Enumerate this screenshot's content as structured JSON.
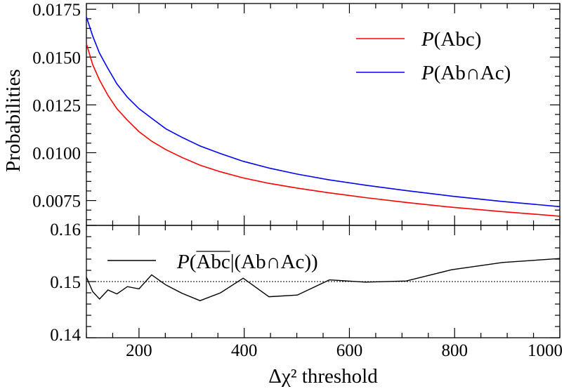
{
  "chart_data": [
    {
      "type": "line",
      "panel": "top",
      "ylabel": "Probabilities",
      "xlim": [
        100,
        1000
      ],
      "ylim": [
        0.0062,
        0.0178
      ],
      "yticks_major": [
        "0.0075",
        "0.0100",
        "0.0125",
        "0.0150",
        "0.0175"
      ],
      "legend_position": "top-right",
      "series": [
        {
          "name": "P(Abc)",
          "color": "#ff0000",
          "x": [
            100,
            112,
            125,
            141,
            158,
            178,
            200,
            224,
            251,
            282,
            316,
            355,
            398,
            447,
            501,
            562,
            631,
            708,
            794,
            891,
            1000
          ],
          "y": [
            0.0157,
            0.0146,
            0.0138,
            0.013,
            0.0123,
            0.0117,
            0.0111,
            0.0106,
            0.01016,
            0.00975,
            0.00935,
            0.009,
            0.00868,
            0.0084,
            0.00815,
            0.0079,
            0.00765,
            0.0074,
            0.00715,
            0.00692,
            0.00668
          ]
        },
        {
          "name": "P(Ab∩Ac)",
          "color": "#0000ff",
          "x": [
            100,
            112,
            125,
            141,
            158,
            178,
            200,
            224,
            251,
            282,
            316,
            355,
            398,
            447,
            501,
            562,
            631,
            708,
            794,
            891,
            1000
          ],
          "y": [
            0.0171,
            0.0161,
            0.0152,
            0.0144,
            0.0136,
            0.0129,
            0.0123,
            0.0118,
            0.01125,
            0.0108,
            0.01035,
            0.00995,
            0.00955,
            0.0092,
            0.00888,
            0.00858,
            0.0083,
            0.00802,
            0.00773,
            0.00745,
            0.00718
          ]
        }
      ]
    },
    {
      "type": "line",
      "panel": "bottom",
      "xlabel": "Δχ² threshold",
      "xticks": [
        "200",
        "400",
        "600",
        "800",
        "1000"
      ],
      "xlim": [
        100,
        1000
      ],
      "ylim": [
        0.14,
        0.16
      ],
      "yticks_major": [
        "0.14",
        "0.15",
        "0.16"
      ],
      "reference_line": 0.15,
      "legend_position": "top-left",
      "series": [
        {
          "name": "P(Abc | (Ab∩Ac))",
          "color": "#000000",
          "x": [
            100,
            112,
            125,
            141,
            158,
            178,
            200,
            224,
            251,
            282,
            316,
            355,
            398,
            447,
            501,
            562,
            631,
            708,
            794,
            891,
            1000
          ],
          "y": [
            0.1508,
            0.1482,
            0.1469,
            0.1485,
            0.1478,
            0.1491,
            0.1487,
            0.1512,
            0.1494,
            0.1479,
            0.1466,
            0.148,
            0.1506,
            0.1473,
            0.1476,
            0.1503,
            0.1499,
            0.1501,
            0.1521,
            0.1534,
            0.1541
          ]
        }
      ]
    }
  ],
  "legend": {
    "top_red_P": "P",
    "top_red_arg": "(Abc)",
    "top_blue_P": "P",
    "top_blue_arg": "(Ab∩Ac)",
    "bottom_P": "P",
    "bottom_open": "(",
    "bottom_bar": "Abc",
    "bottom_cond": "|(Ab∩Ac))"
  },
  "bottom_top_tick_label": "0.16"
}
